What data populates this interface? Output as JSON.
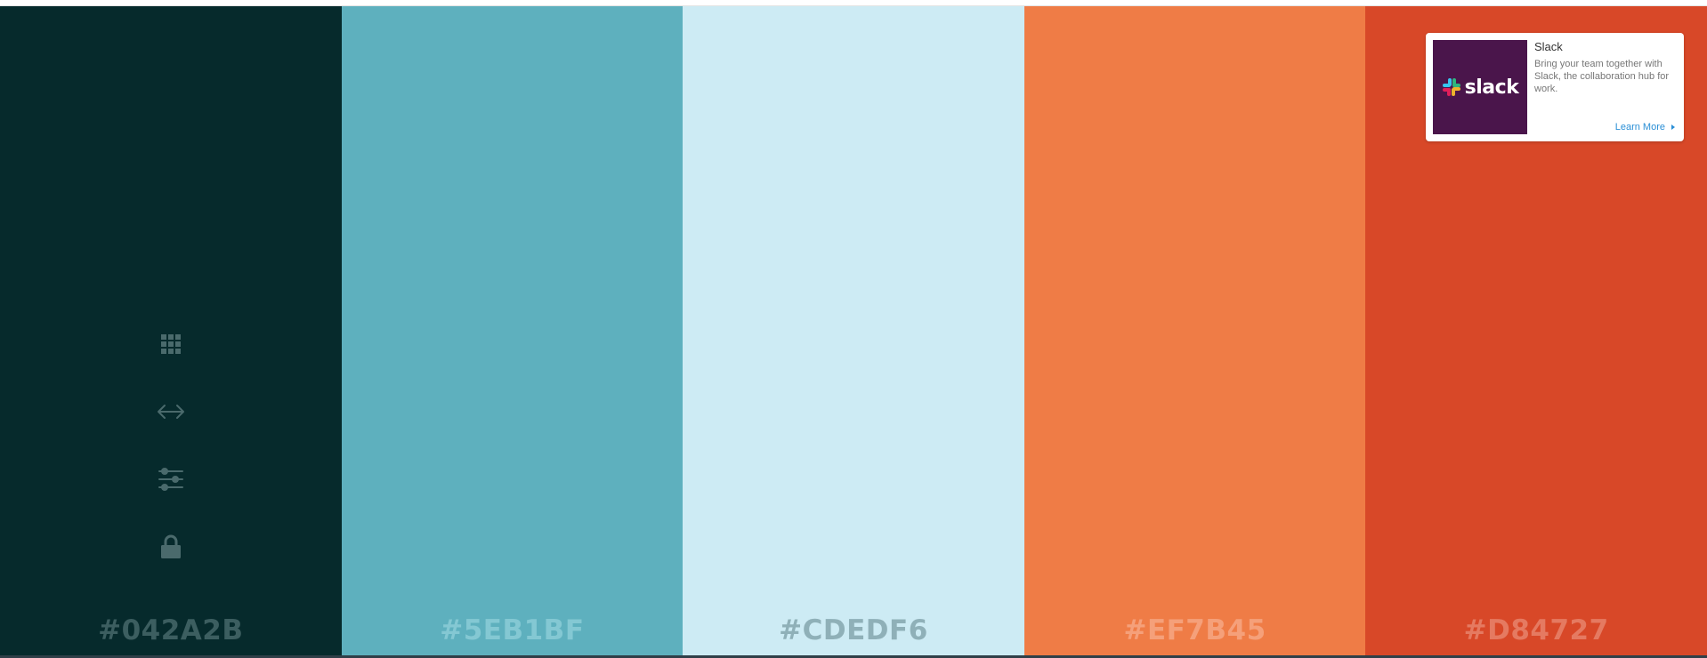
{
  "palette": {
    "swatches": [
      {
        "hex_label": "#042A2B",
        "color": "#062A2C",
        "label_color": "#3C5E60"
      },
      {
        "hex_label": "#5EB1BF",
        "color": "#5EB0BE",
        "label_color": "#84C8D3"
      },
      {
        "hex_label": "#CDEDF6",
        "color": "#CDEBF4",
        "label_color": "#8FB0B8"
      },
      {
        "hex_label": "#EF7B45",
        "color": "#EF7C46",
        "label_color": "#F5A07A"
      },
      {
        "hex_label": "#D84727",
        "color": "#D84828",
        "label_color": "#E57A61"
      }
    ]
  },
  "tools": {
    "icon_color": "#4A6A6C",
    "items": [
      {
        "icon": "grid-icon"
      },
      {
        "icon": "arrows-horizontal-icon"
      },
      {
        "icon": "sliders-icon"
      },
      {
        "icon": "lock-icon"
      }
    ]
  },
  "ad": {
    "brand": "slack",
    "title": "Slack",
    "description": "Bring your team together with Slack, the collaboration hub for work.",
    "cta_label": "Learn More",
    "logo_bg": "#4A154B"
  }
}
